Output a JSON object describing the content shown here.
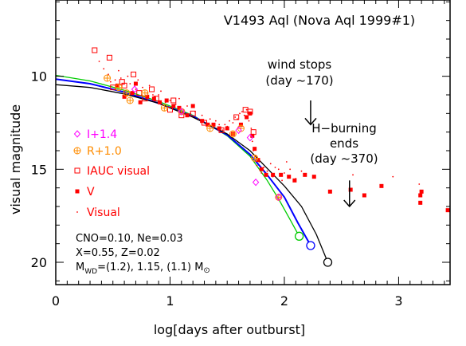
{
  "chart_data": {
    "type": "scatter",
    "title": "V1493 Aql (Nova Aql 1999#1)",
    "xlabel": "log[days after outburst]",
    "ylabel": "visual magnitude",
    "xlim": [
      0,
      3.45
    ],
    "ylim": [
      21.2,
      5.9
    ],
    "y_inverted": true,
    "grid": false,
    "x_ticks": [
      0,
      1,
      2,
      3
    ],
    "x_tick_labels": [
      "0",
      "1",
      "2",
      "3"
    ],
    "y_ticks": [
      10,
      15,
      20
    ],
    "y_tick_labels": [
      "10",
      "15",
      "20"
    ],
    "legend_position": "left",
    "legend": [
      {
        "label": "I+1.4",
        "marker": "diamond-open",
        "color": "#ff00ff"
      },
      {
        "label": "R+1.0",
        "marker": "circle-plus",
        "color": "#ff8c00"
      },
      {
        "label": "IAUC visual",
        "marker": "square-open",
        "color": "#ff0000"
      },
      {
        "label": "V",
        "marker": "square-filled",
        "color": "#ff0000"
      },
      {
        "label": "Visual",
        "marker": "dot",
        "color": "#ff0000"
      }
    ],
    "annotations": [
      {
        "text_lines": [
          "wind stops",
          "(day ~170)"
        ],
        "arrow_x": 2.23,
        "arrow_y": [
          11.3,
          12.6
        ]
      },
      {
        "text_lines": [
          "H−burning",
          "ends",
          "(day ~370)"
        ],
        "arrow_x": 2.57,
        "arrow_y": [
          15.6,
          17.0
        ]
      }
    ],
    "model_params": {
      "line1": "CNO=0.10, Ne=0.03",
      "line2": "X=0.55, Z=0.02",
      "line3_prefix": "M",
      "line3_sub": "WD",
      "line3_mid": "=(1.2), 1.15, (1.1) M",
      "line3_sun": "⊙"
    },
    "series": [
      {
        "name": "I+1.4",
        "marker": "diamond-open",
        "color": "#ff00ff",
        "points": [
          [
            0.69,
            10.7
          ],
          [
            1.1,
            11.9
          ],
          [
            1.6,
            12.9
          ],
          [
            1.7,
            13.3
          ],
          [
            1.75,
            15.7
          ],
          [
            1.95,
            16.5
          ]
        ]
      },
      {
        "name": "R+1.0",
        "marker": "circle-plus",
        "color": "#ff8c00",
        "points": [
          [
            0.45,
            10.1
          ],
          [
            0.55,
            10.6
          ],
          [
            0.62,
            10.9
          ],
          [
            0.65,
            11.3
          ],
          [
            0.78,
            10.9
          ],
          [
            0.95,
            11.7
          ],
          [
            1.1,
            11.9
          ],
          [
            1.35,
            12.8
          ],
          [
            1.55,
            13.1
          ],
          [
            1.62,
            12.8
          ],
          [
            1.74,
            14.4
          ],
          [
            1.95,
            16.5
          ]
        ]
      },
      {
        "name": "IAUC visual",
        "marker": "square-open",
        "color": "#ff0000",
        "points": [
          [
            0.34,
            8.6
          ],
          [
            0.47,
            9.0
          ],
          [
            0.5,
            10.6
          ],
          [
            0.58,
            10.3
          ],
          [
            0.6,
            10.5
          ],
          [
            0.68,
            9.9
          ],
          [
            0.73,
            10.9
          ],
          [
            0.78,
            11.2
          ],
          [
            0.84,
            10.7
          ],
          [
            0.88,
            11.2
          ],
          [
            1.0,
            11.8
          ],
          [
            1.03,
            11.3
          ],
          [
            1.1,
            12.1
          ],
          [
            1.2,
            12.0
          ],
          [
            1.3,
            12.5
          ],
          [
            1.45,
            12.9
          ],
          [
            1.58,
            12.2
          ],
          [
            1.66,
            11.8
          ],
          [
            1.7,
            11.9
          ],
          [
            1.73,
            13.0
          ]
        ]
      },
      {
        "name": "V",
        "marker": "square-filled",
        "color": "#ff0000",
        "points": [
          [
            0.54,
            10.5
          ],
          [
            0.6,
            11.1
          ],
          [
            0.67,
            10.9
          ],
          [
            0.7,
            10.4
          ],
          [
            0.74,
            11.4
          ],
          [
            0.8,
            11.1
          ],
          [
            0.86,
            11.2
          ],
          [
            0.91,
            11.4
          ],
          [
            0.97,
            11.3
          ],
          [
            1.03,
            11.6
          ],
          [
            1.08,
            11.7
          ],
          [
            1.15,
            12.1
          ],
          [
            1.2,
            11.6
          ],
          [
            1.28,
            12.4
          ],
          [
            1.33,
            12.6
          ],
          [
            1.38,
            12.6
          ],
          [
            1.43,
            12.8
          ],
          [
            1.5,
            12.8
          ],
          [
            1.55,
            13.1
          ],
          [
            1.62,
            12.6
          ],
          [
            1.67,
            12.2
          ],
          [
            1.7,
            12.0
          ],
          [
            1.72,
            13.2
          ],
          [
            1.74,
            13.9
          ],
          [
            1.77,
            14.5
          ],
          [
            1.8,
            15.0
          ],
          [
            1.84,
            15.3
          ],
          [
            1.9,
            15.3
          ],
          [
            1.97,
            15.3
          ],
          [
            2.04,
            15.4
          ],
          [
            2.09,
            15.6
          ],
          [
            2.18,
            15.3
          ],
          [
            2.26,
            15.4
          ],
          [
            2.4,
            16.2
          ],
          [
            2.58,
            16.1
          ],
          [
            2.7,
            16.4
          ],
          [
            2.85,
            15.9
          ],
          [
            3.19,
            16.4
          ],
          [
            3.19,
            16.8
          ],
          [
            3.2,
            16.2
          ],
          [
            3.43,
            17.2
          ]
        ]
      }
    ],
    "visual_dots": [
      [
        0.38,
        9.2
      ],
      [
        0.42,
        9.6
      ],
      [
        0.46,
        9.9
      ],
      [
        0.48,
        10.3
      ],
      [
        0.52,
        10.2
      ],
      [
        0.55,
        9.7
      ],
      [
        0.57,
        10.1
      ],
      [
        0.6,
        10.8
      ],
      [
        0.63,
        10.0
      ],
      [
        0.65,
        10.4
      ],
      [
        0.7,
        10.7
      ],
      [
        0.72,
        10.2
      ],
      [
        0.76,
        10.6
      ],
      [
        0.8,
        10.9
      ],
      [
        0.82,
        10.5
      ],
      [
        0.85,
        11.0
      ],
      [
        0.9,
        11.0
      ],
      [
        0.92,
        10.8
      ],
      [
        0.96,
        11.4
      ],
      [
        1.0,
        11.3
      ],
      [
        1.05,
        11.5
      ],
      [
        1.08,
        11.2
      ],
      [
        1.12,
        11.8
      ],
      [
        1.15,
        11.6
      ],
      [
        1.18,
        12.0
      ],
      [
        1.22,
        11.9
      ],
      [
        1.25,
        12.3
      ],
      [
        1.28,
        12.1
      ],
      [
        1.32,
        12.5
      ],
      [
        1.35,
        12.3
      ],
      [
        1.38,
        12.7
      ],
      [
        1.4,
        12.4
      ],
      [
        1.43,
        12.6
      ],
      [
        1.46,
        12.9
      ],
      [
        1.48,
        12.6
      ],
      [
        1.5,
        12.7
      ],
      [
        1.52,
        12.4
      ],
      [
        1.55,
        12.5
      ],
      [
        1.57,
        12.2
      ],
      [
        1.59,
        12.3
      ],
      [
        1.61,
        12.0
      ],
      [
        1.63,
        11.9
      ],
      [
        1.65,
        12.1
      ],
      [
        1.67,
        11.8
      ],
      [
        1.69,
        12.4
      ],
      [
        1.71,
        12.8
      ],
      [
        1.72,
        13.5
      ],
      [
        1.73,
        14.0
      ],
      [
        1.75,
        14.3
      ],
      [
        1.76,
        14.8
      ],
      [
        1.78,
        14.6
      ],
      [
        1.8,
        15.2
      ],
      [
        1.82,
        14.9
      ],
      [
        1.85,
        15.1
      ],
      [
        1.88,
        14.7
      ],
      [
        1.9,
        15.4
      ],
      [
        1.92,
        14.9
      ],
      [
        1.95,
        15.0
      ],
      [
        1.98,
        15.6
      ],
      [
        2.0,
        15.2
      ],
      [
        2.02,
        14.6
      ],
      [
        2.05,
        15.0
      ],
      [
        2.1,
        15.5
      ],
      [
        2.15,
        15.1
      ],
      [
        2.6,
        15.3
      ],
      [
        2.95,
        15.4
      ],
      [
        3.18,
        15.8
      ]
    ],
    "model_curves": [
      {
        "color": "#00cc00",
        "points": [
          [
            0.0,
            9.95
          ],
          [
            0.3,
            10.25
          ],
          [
            0.6,
            10.75
          ],
          [
            0.9,
            11.35
          ],
          [
            1.2,
            12.1
          ],
          [
            1.5,
            13.2
          ],
          [
            1.7,
            14.3
          ],
          [
            1.85,
            15.6
          ],
          [
            1.95,
            16.6
          ],
          [
            2.05,
            17.7
          ],
          [
            2.13,
            18.6
          ]
        ],
        "end_marker": [
          2.13,
          18.6
        ]
      },
      {
        "color": "#0000ff",
        "points": [
          [
            0.0,
            10.15
          ],
          [
            0.3,
            10.4
          ],
          [
            0.6,
            10.85
          ],
          [
            0.9,
            11.45
          ],
          [
            1.2,
            12.15
          ],
          [
            1.5,
            13.15
          ],
          [
            1.7,
            14.2
          ],
          [
            1.85,
            15.3
          ],
          [
            2.0,
            16.5
          ],
          [
            2.12,
            17.9
          ],
          [
            2.23,
            19.1
          ]
        ],
        "end_marker": [
          2.23,
          19.1
        ]
      },
      {
        "color": "#000000",
        "points": [
          [
            0.0,
            10.45
          ],
          [
            0.3,
            10.6
          ],
          [
            0.6,
            10.95
          ],
          [
            0.9,
            11.45
          ],
          [
            1.2,
            12.2
          ],
          [
            1.5,
            13.1
          ],
          [
            1.7,
            14.0
          ],
          [
            1.85,
            14.95
          ],
          [
            2.0,
            15.9
          ],
          [
            2.15,
            17.0
          ],
          [
            2.28,
            18.5
          ],
          [
            2.38,
            20.0
          ]
        ],
        "end_marker": [
          2.38,
          20.0
        ]
      }
    ]
  }
}
